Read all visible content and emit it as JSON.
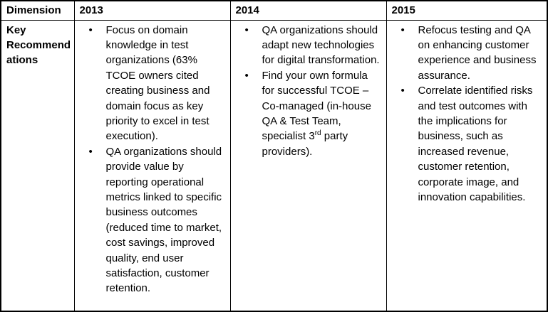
{
  "colors": {
    "border": "#000000",
    "text": "#000000",
    "background": "#ffffff"
  },
  "table": {
    "columns": [
      {
        "key": "dimension",
        "label": "Dimension"
      },
      {
        "key": "y2013",
        "label": "2013"
      },
      {
        "key": "y2014",
        "label": "2014"
      },
      {
        "key": "y2015",
        "label": "2015"
      }
    ],
    "row": {
      "dimension": "Key Recommendations",
      "y2013": [
        "Focus on domain knowledge in test organizations (63% TCOE owners cited creating business and domain focus as key priority to excel in test execution).",
        "QA organizations should provide value by reporting operational metrics linked to specific business outcomes (reduced time to market, cost savings, improved quality, end user satisfaction, customer retention."
      ],
      "y2014": [
        "QA organizations should adapt new technologies for digital transformation.",
        [
          {
            "text": "Find your own formula for successful TCOE – Co-managed (in-house QA & Test Team, specialist 3"
          },
          {
            "text": "rd",
            "sup": true
          },
          {
            "text": " party providers)."
          }
        ]
      ],
      "y2015": [
        "Refocus testing and QA on enhancing customer experience and business assurance.",
        "Correlate identified risks and test outcomes with the implications for business, such as increased revenue, customer retention, corporate image, and innovation capabilities."
      ]
    }
  }
}
